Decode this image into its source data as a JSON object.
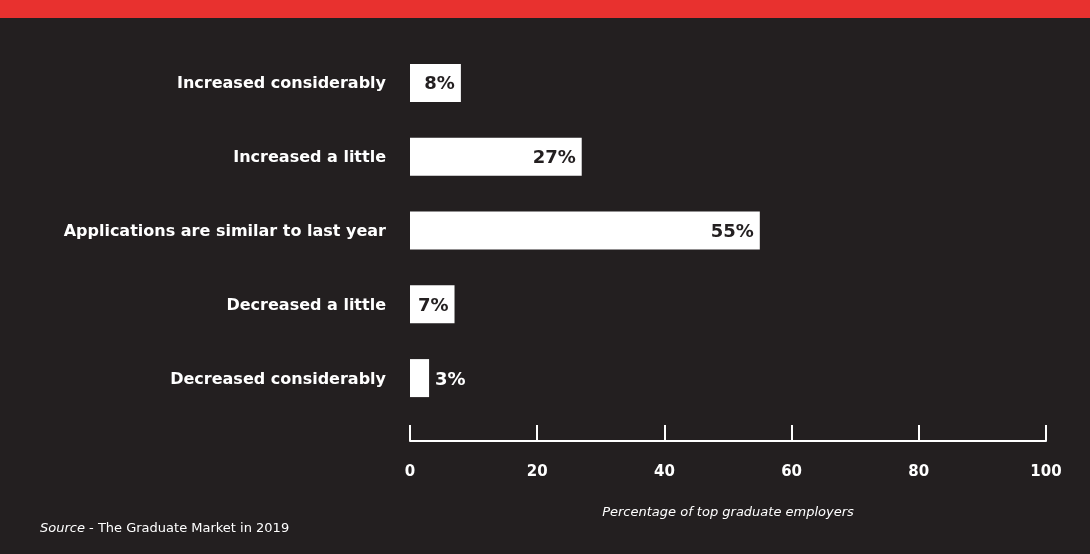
{
  "chart_data": {
    "type": "bar",
    "orientation": "horizontal",
    "categories": [
      "Increased considerably",
      "Increased a little",
      "Applications are similar to last year",
      "Decreased a little",
      "Decreased considerably"
    ],
    "values": [
      8,
      27,
      55,
      7,
      3
    ],
    "color": "#ffffff",
    "value_labels": [
      "8%",
      "27%",
      "55%",
      "7%",
      "3%"
    ],
    "xlim": [
      0,
      100
    ],
    "xticks": [
      0,
      20,
      40,
      60,
      80,
      100
    ],
    "xlabel": "Percentage of top graduate employers",
    "grid": false,
    "annotations": [
      "Source - The Graduate Market in 2019"
    ]
  }
}
